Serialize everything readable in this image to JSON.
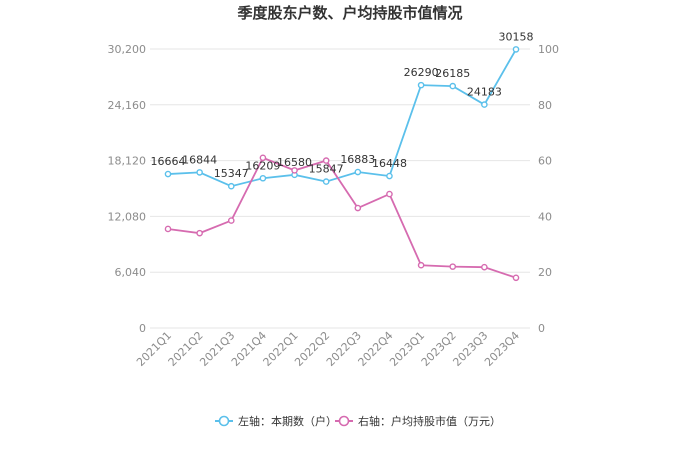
{
  "chart_data": {
    "type": "line",
    "title": "季度股东户数、户均持股市值情况",
    "categories": [
      "2021Q1",
      "2021Q2",
      "2021Q3",
      "2021Q4",
      "2022Q1",
      "2022Q2",
      "2022Q3",
      "2022Q4",
      "2023Q1",
      "2023Q2",
      "2023Q3",
      "2023Q4"
    ],
    "y_left": {
      "ylim": [
        0,
        30200
      ],
      "ticks": [
        "0",
        "6,040",
        "12,080",
        "18,120",
        "24,160",
        "30,200"
      ]
    },
    "y_right": {
      "ylim": [
        0,
        100
      ],
      "ticks": [
        "0",
        "20",
        "40",
        "60",
        "80",
        "100"
      ]
    },
    "series": [
      {
        "name": "左轴：本期数（户）",
        "axis": "left",
        "color": "#5bc0eb",
        "values": [
          16664,
          16844,
          15347,
          16209,
          16580,
          15847,
          16883,
          16448,
          26290,
          26185,
          24183,
          30158
        ],
        "labels": [
          "16664",
          "16844",
          "15347",
          "16209",
          "16580",
          "15847",
          "16883",
          "16448",
          "26290",
          "26185",
          "24183",
          "30158"
        ]
      },
      {
        "name": "右轴：户均持股市值（万元）",
        "axis": "right",
        "color": "#d66bb0",
        "values": [
          35.5,
          34.0,
          38.5,
          61.0,
          56.5,
          60.0,
          43.0,
          48.0,
          22.5,
          22.0,
          21.8,
          18.0
        ]
      }
    ],
    "grid": true,
    "legend_position": "bottom"
  }
}
